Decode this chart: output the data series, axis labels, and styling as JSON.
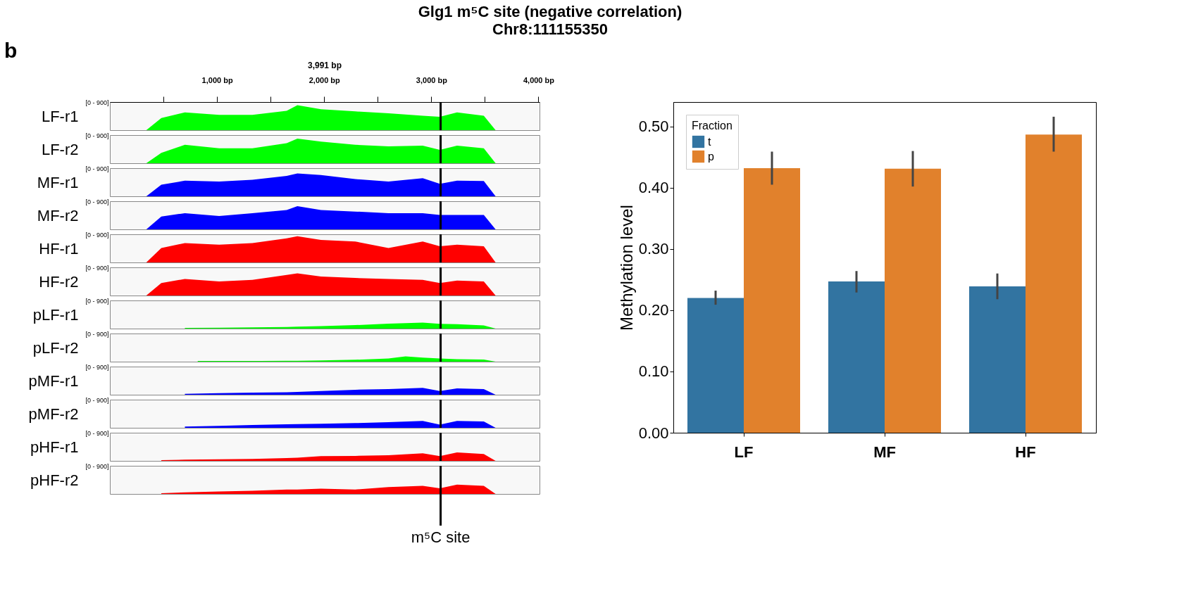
{
  "chart_data": [
    {
      "type": "area",
      "title": "Glg1 m⁵C site (negative correlation)",
      "subtitle": "Chr8:111155350",
      "annotations": [
        "b",
        "3,991 bp"
      ],
      "ylabel": "LF-r1",
      "x": [
        340,
        480,
        700,
        1020,
        1330,
        1650,
        1750,
        1970,
        2290,
        2600,
        2920,
        3080,
        3240,
        3490,
        3600
      ],
      "xlim": [
        0,
        4010
      ],
      "xticks": [
        {
          "value": 500,
          "label": null
        },
        {
          "value": 1000,
          "label": "1,000 bp"
        },
        {
          "value": 1500,
          "label": null
        },
        {
          "value": 2000,
          "label": "2,000 bp"
        },
        {
          "value": 2500,
          "label": null
        },
        {
          "value": 3000,
          "label": "3,000 bp"
        },
        {
          "value": 3500,
          "label": null
        },
        {
          "value": 4000,
          "label": "4,000 bp"
        }
      ],
      "ylim": [
        0,
        900
      ],
      "yticks": [
        {
          "value": 0,
          "label": null
        },
        {
          "value": 900,
          "label": "[0 - 900]"
        }
      ],
      "ref_lines": [
        {
          "axis": "x",
          "value": 3087,
          "color": "#000000"
        }
      ],
      "series": [
        {
          "color": "#00ff00",
          "values": [
            0,
            390,
            570,
            490,
            490,
            620,
            800,
            670,
            600,
            540,
            460,
            430,
            570,
            460,
            0
          ]
        }
      ]
    },
    {
      "type": "area",
      "ylabel": "LF-r2",
      "tick_labels": "y",
      "x": [
        340,
        480,
        700,
        1020,
        1330,
        1650,
        1750,
        1970,
        2290,
        2600,
        2920,
        3080,
        3240,
        3490,
        3600
      ],
      "xlim": [
        0,
        4010
      ],
      "ylim": [
        0,
        900
      ],
      "yticks": [
        {
          "value": 0,
          "label": null
        },
        {
          "value": 900,
          "label": "[0 - 900]"
        }
      ],
      "ref_lines": [
        {
          "axis": "x",
          "value": 3087,
          "color": "#000000"
        }
      ],
      "series": [
        {
          "color": "#00ff00",
          "values": [
            0,
            330,
            590,
            480,
            480,
            640,
            790,
            690,
            590,
            540,
            560,
            430,
            560,
            480,
            0
          ]
        }
      ]
    },
    {
      "type": "area",
      "ylabel": "MF-r1",
      "tick_labels": "y",
      "x": [
        340,
        480,
        700,
        1020,
        1330,
        1650,
        1750,
        1970,
        2290,
        2600,
        2920,
        3080,
        3240,
        3490,
        3600
      ],
      "xlim": [
        0,
        4010
      ],
      "ylim": [
        0,
        900
      ],
      "yticks": [
        {
          "value": 0,
          "label": null
        },
        {
          "value": 900,
          "label": "[0 - 900]"
        }
      ],
      "ref_lines": [
        {
          "axis": "x",
          "value": 3087,
          "color": "#000000"
        }
      ],
      "series": [
        {
          "color": "#0000ff",
          "values": [
            0,
            370,
            500,
            470,
            530,
            650,
            730,
            680,
            550,
            470,
            580,
            400,
            500,
            490,
            0
          ]
        }
      ]
    },
    {
      "type": "area",
      "ylabel": "MF-r2",
      "tick_labels": "y",
      "x": [
        340,
        480,
        700,
        1020,
        1330,
        1650,
        1750,
        1970,
        2290,
        2600,
        2920,
        3080,
        3240,
        3490,
        3600
      ],
      "xlim": [
        0,
        4010
      ],
      "ylim": [
        0,
        900
      ],
      "yticks": [
        {
          "value": 0,
          "label": null
        },
        {
          "value": 900,
          "label": "[0 - 900]"
        }
      ],
      "ref_lines": [
        {
          "axis": "x",
          "value": 3087,
          "color": "#000000"
        }
      ],
      "series": [
        {
          "color": "#0000ff",
          "values": [
            0,
            410,
            520,
            430,
            520,
            620,
            740,
            620,
            570,
            520,
            520,
            460,
            460,
            460,
            0
          ]
        }
      ]
    },
    {
      "type": "area",
      "ylabel": "HF-r1",
      "tick_labels": "y",
      "x": [
        340,
        480,
        700,
        1020,
        1330,
        1650,
        1750,
        1970,
        2290,
        2600,
        2920,
        3080,
        3240,
        3490,
        3600
      ],
      "xlim": [
        0,
        4010
      ],
      "ylim": [
        0,
        900
      ],
      "yticks": [
        {
          "value": 0,
          "label": null
        },
        {
          "value": 900,
          "label": "[0 - 900]"
        }
      ],
      "ref_lines": [
        {
          "axis": "x",
          "value": 3087,
          "color": "#000000"
        }
      ],
      "series": [
        {
          "color": "#ff0000",
          "values": [
            0,
            460,
            620,
            570,
            620,
            770,
            840,
            720,
            670,
            460,
            670,
            520,
            570,
            520,
            0
          ]
        }
      ]
    },
    {
      "type": "area",
      "ylabel": "HF-r2",
      "tick_labels": "y",
      "x": [
        340,
        480,
        700,
        1020,
        1330,
        1650,
        1750,
        1970,
        2290,
        2600,
        2920,
        3080,
        3240,
        3490,
        3600
      ],
      "xlim": [
        0,
        4010
      ],
      "ylim": [
        0,
        900
      ],
      "yticks": [
        {
          "value": 0,
          "label": null
        },
        {
          "value": 900,
          "label": "[0 - 900]"
        }
      ],
      "ref_lines": [
        {
          "axis": "x",
          "value": 3087,
          "color": "#000000"
        }
      ],
      "series": [
        {
          "color": "#ff0000",
          "values": [
            0,
            400,
            530,
            450,
            500,
            660,
            710,
            610,
            560,
            530,
            500,
            400,
            480,
            450,
            0
          ]
        }
      ]
    },
    {
      "type": "area",
      "ylabel": "pLF-r1",
      "tick_labels": "y",
      "xlim": [
        0,
        4010
      ],
      "ylim": [
        0,
        900
      ],
      "yticks": [
        {
          "value": 0,
          "label": null
        },
        {
          "value": 900,
          "label": "[0 - 900]"
        }
      ],
      "ref_lines": [
        {
          "axis": "x",
          "value": 3087,
          "color": "#000000"
        }
      ],
      "series": [
        {
          "color": "#00ff00",
          "x": [
            700,
            1020,
            1330,
            1650,
            1750,
            1970,
            2290,
            2600,
            2920,
            3080,
            3240,
            3490,
            3600
          ],
          "values": [
            20,
            30,
            40,
            50,
            60,
            80,
            110,
            160,
            190,
            150,
            140,
            100,
            0
          ]
        }
      ]
    },
    {
      "type": "area",
      "ylabel": "pLF-r2",
      "tick_labels": "y",
      "xlim": [
        0,
        4010
      ],
      "ylim": [
        0,
        900
      ],
      "yticks": [
        {
          "value": 0,
          "label": null
        },
        {
          "value": 900,
          "label": "[0 - 900]"
        }
      ],
      "ref_lines": [
        {
          "axis": "x",
          "value": 3087,
          "color": "#000000"
        }
      ],
      "series": [
        {
          "color": "#00ff00",
          "x": [
            820,
            1190,
            1400,
            1650,
            1750,
            1970,
            2290,
            2600,
            2760,
            2920,
            3080,
            3240,
            3490,
            3600
          ],
          "values": [
            20,
            20,
            20,
            30,
            30,
            40,
            60,
            100,
            170,
            130,
            100,
            80,
            70,
            0
          ]
        }
      ]
    },
    {
      "type": "area",
      "ylabel": "pMF-r1",
      "tick_labels": "y",
      "xlim": [
        0,
        4010
      ],
      "ylim": [
        0,
        900
      ],
      "yticks": [
        {
          "value": 0,
          "label": null
        },
        {
          "value": 900,
          "label": "[0 - 900]"
        }
      ],
      "ref_lines": [
        {
          "axis": "x",
          "value": 3087,
          "color": "#000000"
        }
      ],
      "series": [
        {
          "color": "#0000ff",
          "x": [
            700,
            1020,
            1330,
            1650,
            1750,
            1970,
            2290,
            2600,
            2920,
            3080,
            3240,
            3490,
            3600
          ],
          "values": [
            30,
            50,
            70,
            80,
            90,
            120,
            160,
            180,
            220,
            120,
            200,
            180,
            0
          ]
        }
      ]
    },
    {
      "type": "area",
      "ylabel": "pMF-r2",
      "tick_labels": "y",
      "xlim": [
        0,
        4010
      ],
      "ylim": [
        0,
        900
      ],
      "yticks": [
        {
          "value": 0,
          "label": null
        },
        {
          "value": 900,
          "label": "[0 - 900]"
        }
      ],
      "ref_lines": [
        {
          "axis": "x",
          "value": 3087,
          "color": "#000000"
        }
      ],
      "series": [
        {
          "color": "#0000ff",
          "x": [
            700,
            1020,
            1330,
            1650,
            1750,
            1970,
            2290,
            2600,
            2920,
            3080,
            3240,
            3490,
            3600
          ],
          "values": [
            40,
            60,
            90,
            110,
            120,
            130,
            150,
            180,
            220,
            100,
            220,
            200,
            0
          ]
        }
      ]
    },
    {
      "type": "area",
      "ylabel": "pHF-r1",
      "tick_labels": "y",
      "xlim": [
        0,
        4010
      ],
      "ylim": [
        0,
        900
      ],
      "yticks": [
        {
          "value": 0,
          "label": null
        },
        {
          "value": 900,
          "label": "[0 - 900]"
        }
      ],
      "ref_lines": [
        {
          "axis": "x",
          "value": 3087,
          "color": "#000000"
        }
      ],
      "series": [
        {
          "color": "#ff0000",
          "x": [
            480,
            700,
            1020,
            1330,
            1650,
            1750,
            1970,
            2290,
            2600,
            2920,
            3080,
            3240,
            3490,
            3600
          ],
          "values": [
            20,
            40,
            50,
            60,
            90,
            100,
            150,
            160,
            180,
            240,
            150,
            270,
            220,
            0
          ]
        }
      ]
    },
    {
      "type": "area",
      "ylabel": "pHF-r2",
      "tick_labels": "y",
      "xlim": [
        0,
        4010
      ],
      "ylim": [
        0,
        900
      ],
      "yticks": [
        {
          "value": 0,
          "label": null
        },
        {
          "value": 900,
          "label": "[0 - 900]"
        }
      ],
      "ref_lines": [
        {
          "axis": "x",
          "value": 3087,
          "color": "#000000",
          "label": "m⁵C site"
        }
      ],
      "series": [
        {
          "color": "#ff0000",
          "x": [
            480,
            700,
            1020,
            1330,
            1650,
            1750,
            1970,
            2290,
            2600,
            2920,
            3080,
            3240,
            3490,
            3600
          ],
          "values": [
            20,
            50,
            80,
            100,
            140,
            140,
            170,
            140,
            220,
            260,
            180,
            300,
            260,
            0
          ]
        }
      ]
    },
    {
      "type": "bar",
      "categories": [
        "LF",
        "MF",
        "HF"
      ],
      "ylabel": "Methylation level",
      "legend_title": "Fraction",
      "legend": "top left",
      "ylim": [
        0,
        0.54
      ],
      "yticks": [
        {
          "value": 0,
          "label": "0.00"
        },
        {
          "value": 0.1,
          "label": "0.10"
        },
        {
          "value": 0.2,
          "label": "0.20"
        },
        {
          "value": 0.3,
          "label": "0.30"
        },
        {
          "value": 0.4,
          "label": "0.40"
        },
        {
          "value": 0.5,
          "label": "0.50"
        }
      ],
      "series": [
        {
          "name": "t",
          "color": "#3274a1",
          "values": [
            0.22,
            0.247,
            0.239
          ],
          "errors": [
            [
              0.209,
              0.232
            ],
            [
              0.229,
              0.264
            ],
            [
              0.218,
              0.26
            ]
          ]
        },
        {
          "name": "p",
          "color": "#e1812c",
          "values": [
            0.432,
            0.431,
            0.487
          ],
          "errors": [
            [
              0.405,
              0.459
            ],
            [
              0.402,
              0.46
            ],
            [
              0.459,
              0.516
            ]
          ]
        }
      ]
    }
  ]
}
